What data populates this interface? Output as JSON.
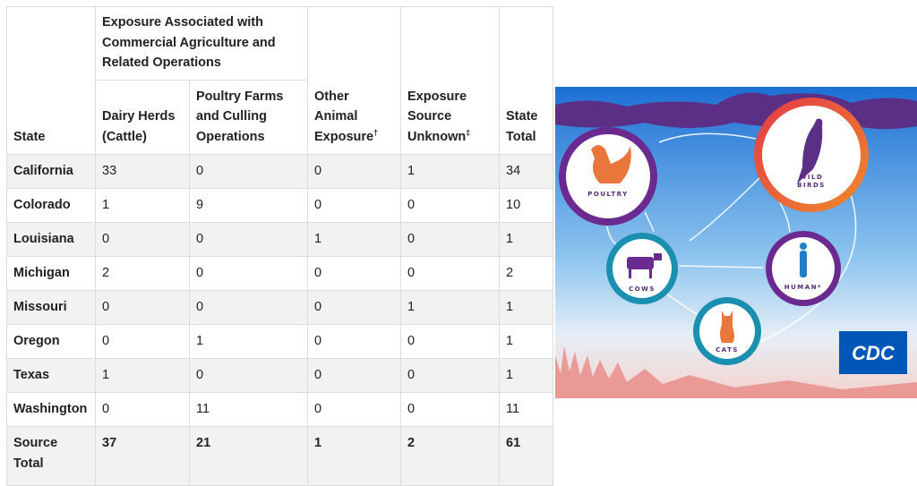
{
  "table": {
    "header": {
      "state": "State",
      "group": "Exposure Associated with Commercial Agriculture and Related Operations",
      "columns": [
        {
          "text": "Dairy Herds (Cattle)"
        },
        {
          "text": "Poultry Farms and Culling Operations"
        },
        {
          "text": "Other Animal Exposure",
          "mark": "†"
        },
        {
          "text": "Exposure Source Unknown",
          "mark": "‡"
        },
        {
          "text": "State Total"
        }
      ]
    },
    "rows": [
      [
        "California",
        33,
        0,
        0,
        1,
        34
      ],
      [
        "Colorado",
        1,
        9,
        0,
        0,
        10
      ],
      [
        "Louisiana",
        0,
        0,
        1,
        0,
        1
      ],
      [
        "Michigan",
        2,
        0,
        0,
        0,
        2
      ],
      [
        "Missouri",
        0,
        0,
        0,
        1,
        1
      ],
      [
        "Oregon",
        0,
        1,
        0,
        0,
        1
      ],
      [
        "Texas",
        1,
        0,
        0,
        0,
        1
      ],
      [
        "Washington",
        0,
        11,
        0,
        0,
        11
      ]
    ],
    "total": [
      "Source Total",
      37,
      21,
      1,
      2,
      61
    ]
  },
  "illustration": {
    "poultry": "POULTRY",
    "wild_birds": [
      "WILD",
      "BIRDS"
    ],
    "cows": "COWS",
    "human": "HUMAN*",
    "cats": "CATS",
    "logo": "CDC"
  }
}
